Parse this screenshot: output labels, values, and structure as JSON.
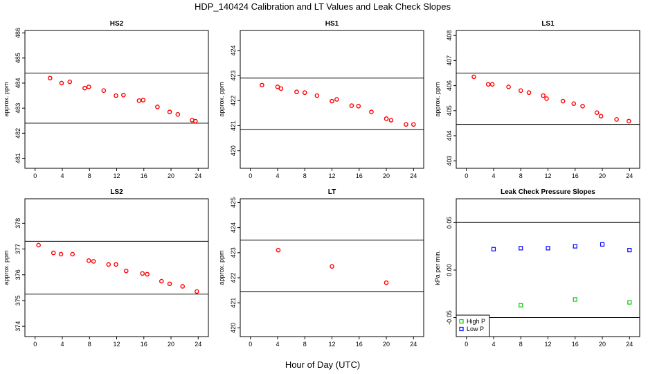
{
  "title": "HDP_140424  Calibration and LT Values and Leak Check Slopes",
  "xlabel": "Hour of Day (UTC)",
  "chart_data": [
    {
      "id": "HS2",
      "type": "scatter",
      "title": "HS2",
      "ylabel": "approx. ppm",
      "xlim": [
        -1.5,
        25.5
      ],
      "ylim": [
        480.6,
        486.1
      ],
      "xticks": [
        0,
        4,
        8,
        12,
        16,
        20,
        24
      ],
      "yticks": [
        481,
        482,
        483,
        484,
        485,
        486
      ],
      "hlines": [
        484.4,
        482.4
      ],
      "series": [
        {
          "name": "HS2",
          "color": "#ff0000",
          "marker": "circle",
          "points": [
            [
              2.2,
              484.2
            ],
            [
              3.9,
              484.0
            ],
            [
              5.1,
              484.05
            ],
            [
              7.3,
              483.8
            ],
            [
              7.9,
              483.85
            ],
            [
              10.1,
              483.7
            ],
            [
              11.9,
              483.5
            ],
            [
              13,
              483.52
            ],
            [
              15.3,
              483.3
            ],
            [
              15.9,
              483.32
            ],
            [
              18,
              483.05
            ],
            [
              19.8,
              482.85
            ],
            [
              21,
              482.75
            ],
            [
              23.1,
              482.52
            ],
            [
              23.6,
              482.48
            ]
          ]
        }
      ]
    },
    {
      "id": "HS1",
      "type": "scatter",
      "title": "HS1",
      "ylabel": "approx. ppm",
      "xlim": [
        -1.5,
        25.5
      ],
      "ylim": [
        419.3,
        424.8
      ],
      "xticks": [
        0,
        4,
        8,
        12,
        16,
        20,
        24
      ],
      "yticks": [
        420,
        421,
        422,
        423,
        424
      ],
      "hlines": [
        422.9,
        420.85
      ],
      "series": [
        {
          "name": "HS1",
          "color": "#ff0000",
          "marker": "circle",
          "points": [
            [
              1.7,
              422.62
            ],
            [
              4,
              422.55
            ],
            [
              4.5,
              422.48
            ],
            [
              6.8,
              422.35
            ],
            [
              8,
              422.32
            ],
            [
              9.8,
              422.2
            ],
            [
              12,
              421.98
            ],
            [
              12.7,
              422.05
            ],
            [
              14.9,
              421.8
            ],
            [
              15.9,
              421.78
            ],
            [
              17.8,
              421.55
            ],
            [
              20,
              421.28
            ],
            [
              20.7,
              421.22
            ],
            [
              22.9,
              421.05
            ],
            [
              24,
              421.05
            ]
          ]
        }
      ]
    },
    {
      "id": "LS1",
      "type": "scatter",
      "title": "LS1",
      "ylabel": "approx. ppm",
      "xlim": [
        -1.5,
        25.5
      ],
      "ylim": [
        402.7,
        408.2
      ],
      "xticks": [
        0,
        4,
        8,
        12,
        16,
        20,
        24
      ],
      "yticks": [
        403,
        404,
        405,
        406,
        407,
        408
      ],
      "hlines": [
        406.5,
        404.45
      ],
      "series": [
        {
          "name": "LS1",
          "color": "#ff0000",
          "marker": "circle",
          "points": [
            [
              1.1,
              406.35
            ],
            [
              3.2,
              406.05
            ],
            [
              3.8,
              406.05
            ],
            [
              6.2,
              405.95
            ],
            [
              8,
              405.8
            ],
            [
              9.2,
              405.72
            ],
            [
              11.3,
              405.6
            ],
            [
              11.8,
              405.48
            ],
            [
              14.2,
              405.38
            ],
            [
              15.8,
              405.28
            ],
            [
              17.1,
              405.18
            ],
            [
              19.2,
              404.92
            ],
            [
              19.8,
              404.78
            ],
            [
              22.1,
              404.65
            ],
            [
              23.9,
              404.58
            ]
          ]
        }
      ]
    },
    {
      "id": "LS2",
      "type": "scatter",
      "title": "LS2",
      "ylabel": "approx. ppm",
      "xlim": [
        -1.5,
        25.5
      ],
      "ylim": [
        373.6,
        378.95
      ],
      "xticks": [
        0,
        4,
        8,
        12,
        16,
        20,
        24
      ],
      "yticks": [
        374,
        375,
        376,
        377,
        378
      ],
      "hlines": [
        377.3,
        375.25
      ],
      "series": [
        {
          "name": "LS2",
          "color": "#ff0000",
          "marker": "circle",
          "points": [
            [
              0.5,
              377.15
            ],
            [
              2.7,
              376.85
            ],
            [
              3.8,
              376.8
            ],
            [
              5.5,
              376.8
            ],
            [
              7.9,
              376.55
            ],
            [
              8.6,
              376.52
            ],
            [
              10.8,
              376.4
            ],
            [
              11.9,
              376.4
            ],
            [
              13.4,
              376.15
            ],
            [
              15.8,
              376.05
            ],
            [
              16.5,
              376.02
            ],
            [
              18.6,
              375.75
            ],
            [
              19.8,
              375.65
            ],
            [
              21.7,
              375.55
            ],
            [
              23.8,
              375.35
            ]
          ]
        }
      ]
    },
    {
      "id": "LT",
      "type": "scatter",
      "title": "LT",
      "ylabel": "approx. ppm",
      "xlim": [
        -1.5,
        25.5
      ],
      "ylim": [
        419.65,
        425.15
      ],
      "xticks": [
        0,
        4,
        8,
        12,
        16,
        20,
        24
      ],
      "yticks": [
        420,
        421,
        422,
        423,
        424,
        425
      ],
      "hlines": [
        423.5,
        421.45
      ],
      "series": [
        {
          "name": "LT",
          "color": "#ff0000",
          "marker": "circle",
          "points": [
            [
              4.1,
              423.1
            ],
            [
              12,
              422.45
            ],
            [
              20,
              421.8
            ]
          ]
        }
      ]
    },
    {
      "id": "LeakCheck",
      "type": "scatter",
      "title": "Leak Check Pressure Slopes",
      "ylabel": "kPa per min.",
      "xlim": [
        -1.5,
        25.5
      ],
      "ylim": [
        -0.07,
        0.075
      ],
      "xticks": [
        0,
        4,
        8,
        12,
        16,
        20,
        24
      ],
      "yticks": [
        -0.05,
        0.0,
        0.05
      ],
      "ytick_labels": [
        "-0.05",
        "0.00",
        "0.05"
      ],
      "hlines": [
        0.05,
        -0.05
      ],
      "legend": {
        "position": "bottom-left",
        "entries": [
          "High P",
          "Low P"
        ]
      },
      "series": [
        {
          "name": "High P",
          "color": "#00cc00",
          "marker": "square",
          "points": [
            [
              8,
              -0.037
            ],
            [
              16,
              -0.031
            ],
            [
              24,
              -0.034
            ]
          ]
        },
        {
          "name": "Low P",
          "color": "#0000ff",
          "marker": "square",
          "points": [
            [
              4,
              0.022
            ],
            [
              8,
              0.023
            ],
            [
              12,
              0.023
            ],
            [
              16,
              0.025
            ],
            [
              20,
              0.027
            ],
            [
              24,
              0.021
            ]
          ]
        }
      ]
    }
  ]
}
